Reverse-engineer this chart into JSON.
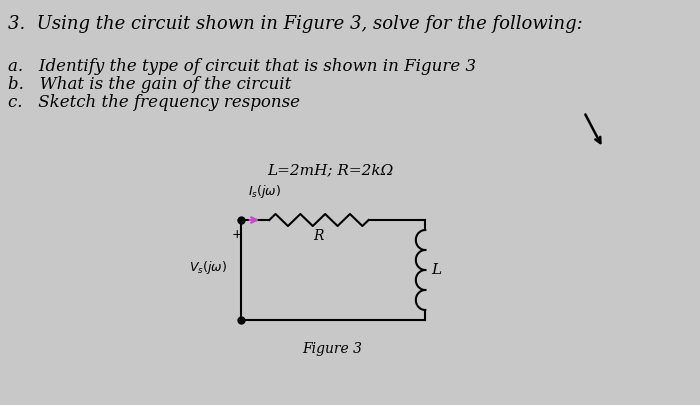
{
  "title_line": "3.  Using the circuit shown in Figure 3, solve for the following:",
  "items": [
    "a.   Identify the type of circuit that is shown in Figure 3",
    "b.   What is the gain of the circuit",
    "c.   Sketch the frequency response"
  ],
  "param_label": "L=2mH; R=2kΩ",
  "figure_caption": "Figure 3",
  "bg_color": "#c8c8c8",
  "text_color": "#000000",
  "title_fontsize": 13,
  "body_fontsize": 12,
  "param_fontsize": 11
}
